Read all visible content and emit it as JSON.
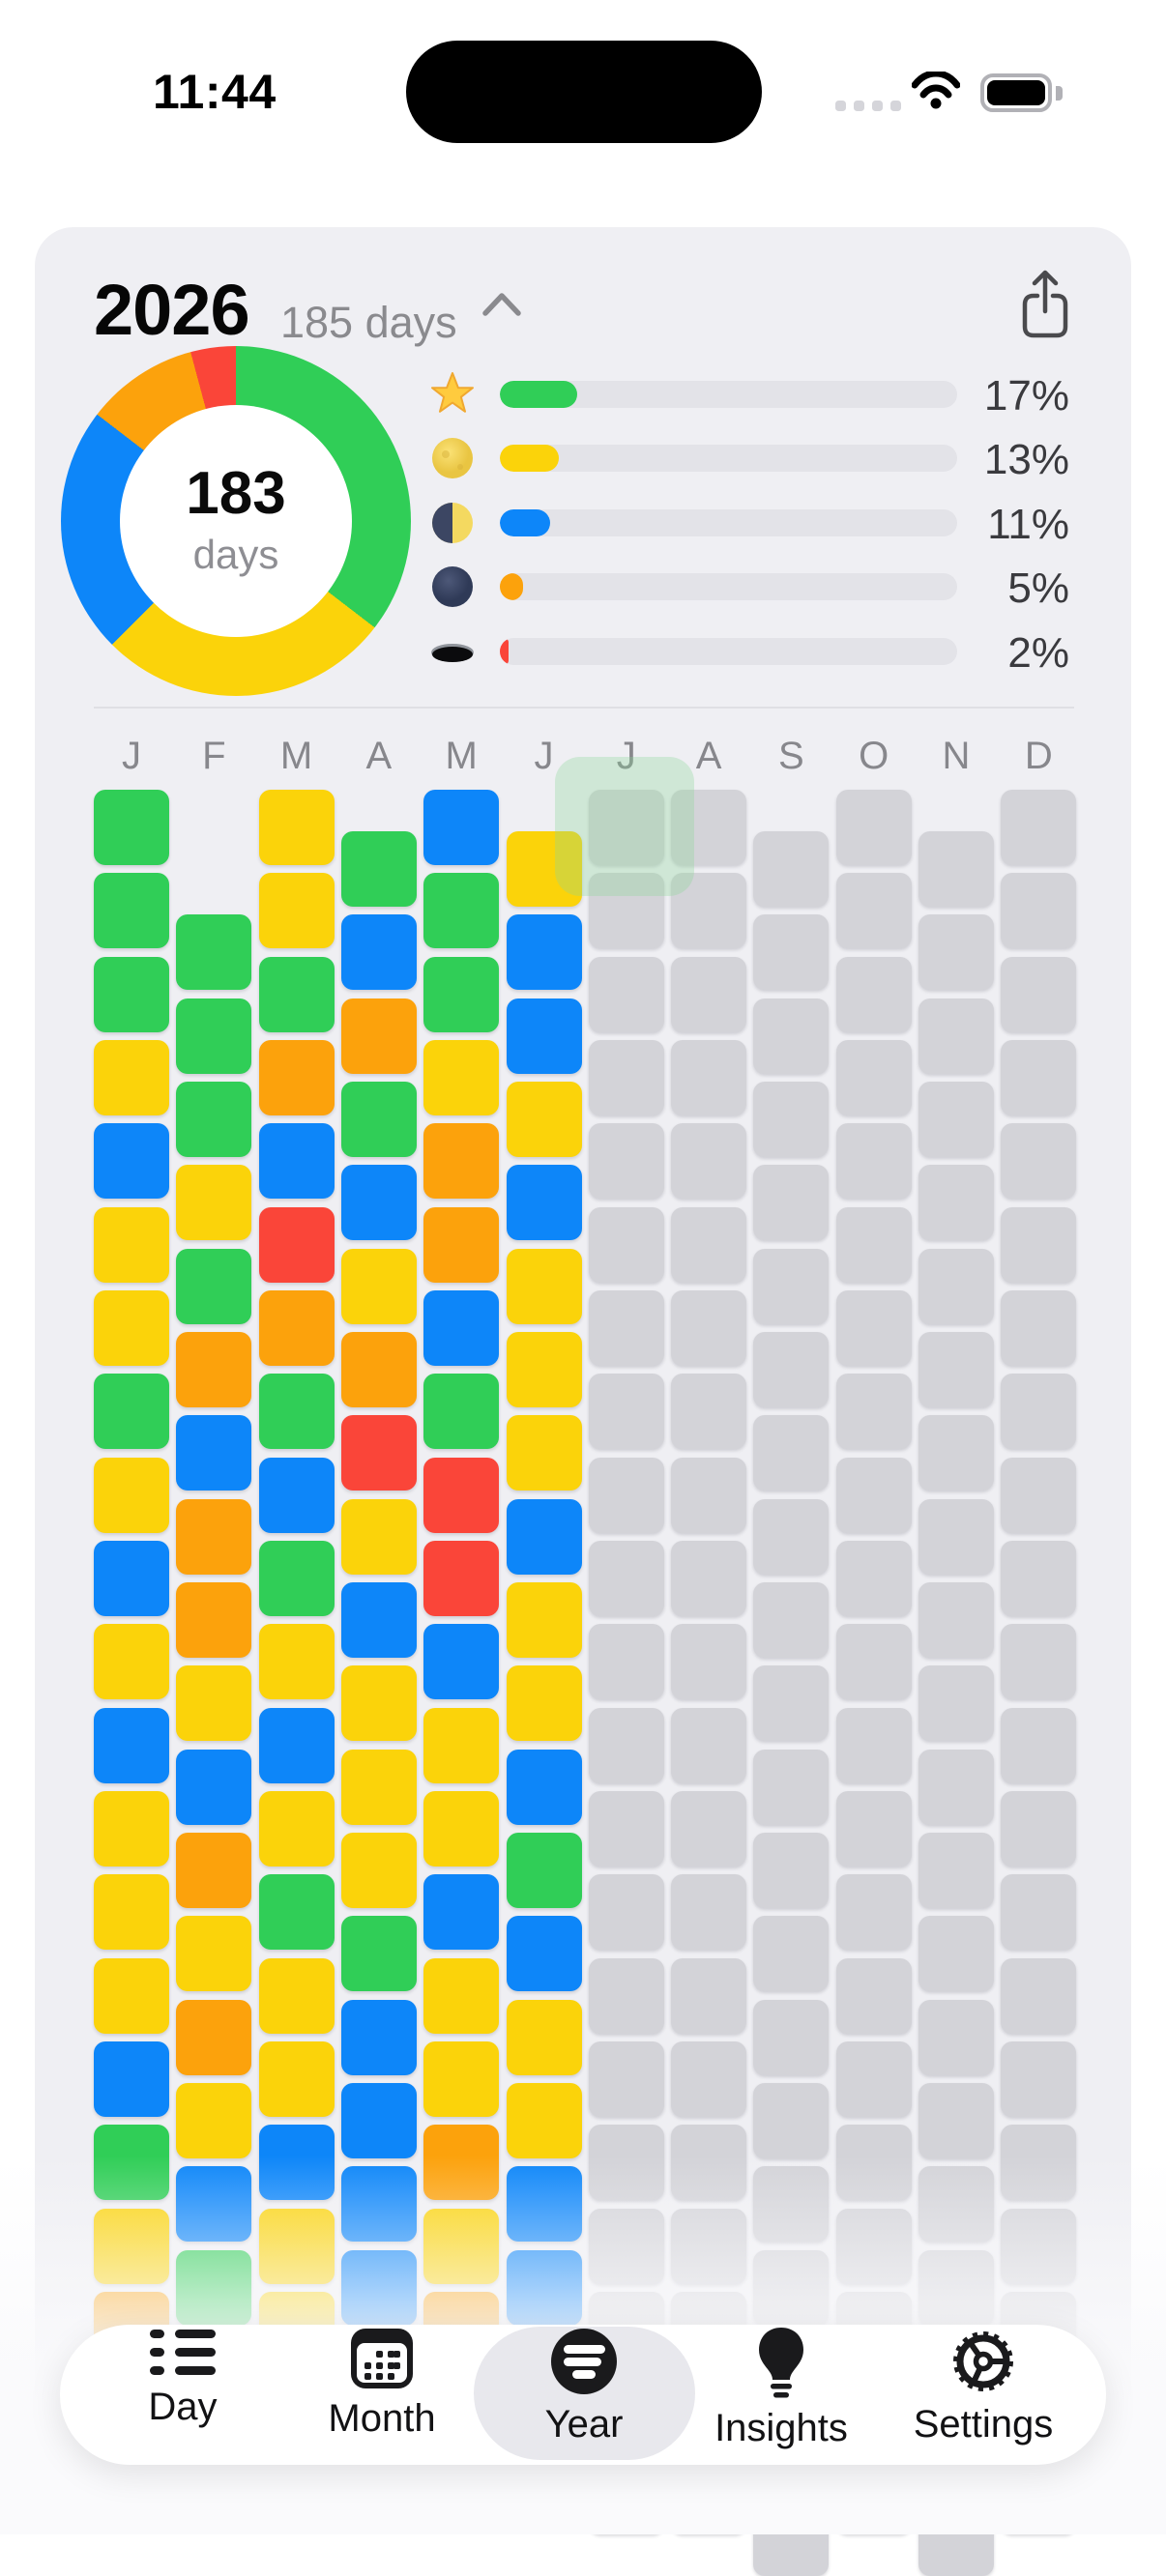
{
  "status_bar": {
    "time": "11:44",
    "icons": [
      "cellular-dots-icon",
      "wifi-icon",
      "battery-icon"
    ]
  },
  "header": {
    "title": "2026",
    "subtitle": "185 days"
  },
  "summary": {
    "donut": {
      "value": "183",
      "label": "days"
    },
    "legend": [
      {
        "icon": "glowing-star-icon",
        "percent": "17%",
        "value": 17,
        "color": "#30CE57"
      },
      {
        "icon": "full-moon-icon",
        "percent": "13%",
        "value": 13,
        "color": "#FBD30A"
      },
      {
        "icon": "last-quarter-moon-icon",
        "percent": "11%",
        "value": 11,
        "color": "#0D86F9"
      },
      {
        "icon": "new-moon-icon",
        "percent": "5%",
        "value": 5,
        "color": "#FCA20C"
      },
      {
        "icon": "hole-icon",
        "percent": "2%",
        "value": 2,
        "color": "#FA4539"
      }
    ]
  },
  "calendar": {
    "month_labels": [
      "J",
      "F",
      "M",
      "A",
      "M",
      "J",
      "J",
      "A",
      "S",
      "O",
      "N",
      "D"
    ],
    "color_key": {
      "g": "#30CE57",
      "y": "#FBD30A",
      "b": "#0D86F9",
      "o": "#FCA20C",
      "r": "#FA4539",
      "future": "#D3D3D8"
    },
    "months": [
      {
        "label": "J",
        "days": 31,
        "future": false,
        "cells": "gggybyygybybyyybgyo"
      },
      {
        "label": "F",
        "days": 28,
        "future": false,
        "cells": "gggygobooyboyoybg"
      },
      {
        "label": "M",
        "days": 31,
        "future": false,
        "cells": "yygobrogbgybygyybyy"
      },
      {
        "label": "A",
        "days": 30,
        "future": false,
        "cells": "gbogbyorybyyygbbbb"
      },
      {
        "label": "M",
        "days": 31,
        "future": false,
        "cells": "bggyoobgrrbyybyyoyo"
      },
      {
        "label": "J",
        "days": 30,
        "future": false,
        "cells": "ybbybyyybyybgbyybb"
      },
      {
        "label": "J",
        "days": 31,
        "future": true,
        "cells": ""
      },
      {
        "label": "A",
        "days": 31,
        "future": true,
        "cells": ""
      },
      {
        "label": "S",
        "days": 30,
        "future": true,
        "cells": ""
      },
      {
        "label": "O",
        "days": 31,
        "future": true,
        "cells": ""
      },
      {
        "label": "N",
        "days": 30,
        "future": true,
        "cells": ""
      },
      {
        "label": "D",
        "days": 31,
        "future": true,
        "cells": ""
      }
    ],
    "highlighted_month": "July"
  },
  "tab_bar": {
    "selected": "Year",
    "tabs": [
      {
        "label": "Day",
        "icon": "day-list-icon"
      },
      {
        "label": "Month",
        "icon": "month-calendar-icon"
      },
      {
        "label": "Year",
        "icon": "year-logo-icon"
      },
      {
        "label": "Insights",
        "icon": "insights-bulb-icon"
      },
      {
        "label": "Settings",
        "icon": "settings-gear-icon"
      }
    ]
  },
  "colors": {
    "page_bg": "#FFFFFF",
    "card_bg": "#EFEFF3",
    "future_cell": "#D3D3D8",
    "legend_track": "#E3E3E8",
    "highlight": "rgba(141,214,152,0.32)",
    "tab_pill": "#E8E8ED"
  }
}
